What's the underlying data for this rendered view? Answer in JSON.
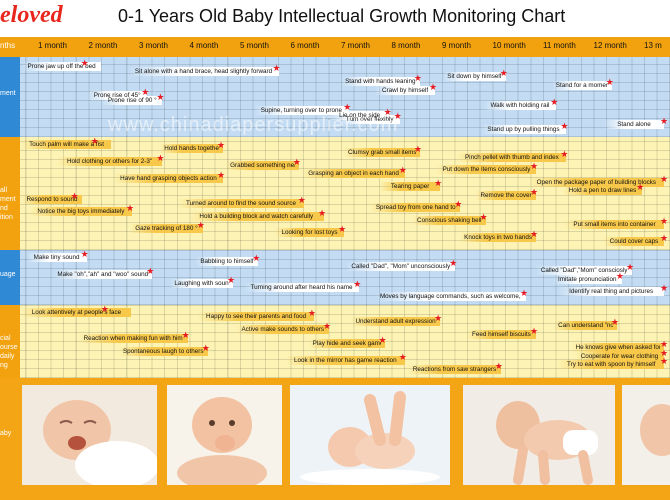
{
  "brand": "eloved",
  "title": "0-1 Years Old Baby Intellectual Growth Monitoring Chart",
  "watermark": "www.chinadiapersupplier.com",
  "header": {
    "corner": "nths"
  },
  "baby_label": "aby",
  "chart_data": {
    "type": "table",
    "title": "0-1 Years Old Baby Intellectual Growth Monitoring Chart",
    "months": [
      "1 month",
      "2 month",
      "3 month",
      "4 month",
      "5 month",
      "6 month",
      "7 month",
      "8 month",
      "9 month",
      "10 month",
      "11 month",
      "12 month",
      "13 m"
    ],
    "sections": [
      {
        "label": "ment",
        "items": [
          {
            "text": "Prone jaw up off the bed",
            "month": 1.7
          },
          {
            "text": "Sit alone with a hand brace, head slightly forward",
            "month": 5.5
          },
          {
            "text": "Sit down by himself",
            "month": 10.0
          },
          {
            "text": "Stand with hands leaning",
            "month": 8.3
          },
          {
            "text": "Stand for a moment",
            "month": 12.1
          },
          {
            "text": "Crawl by himself",
            "month": 8.6
          },
          {
            "text": "Prone rise of 45°",
            "month": 2.9
          },
          {
            "text": "Prone rise of 90 °",
            "month": 3.2
          },
          {
            "text": "Walk with holding rail",
            "month": 11.0
          },
          {
            "text": "Supine, turning over to prone",
            "month": 6.9
          },
          {
            "text": "Lie on the side",
            "month": 7.7
          },
          {
            "text": "Turn over flexibly",
            "month": 7.9
          },
          {
            "text": "Stand alone",
            "month": 13.3
          },
          {
            "text": "Stand up by pulling things",
            "month": 11.2
          }
        ]
      },
      {
        "label": "all ment nd ition",
        "items": [
          {
            "text": "Touch palm will make a fist",
            "month": 1.9
          },
          {
            "text": "Hold hands together",
            "month": 4.4
          },
          {
            "text": "Clumsy grab small items",
            "month": 8.3
          },
          {
            "text": "Pinch pellet with thumb and index",
            "month": 11.2
          },
          {
            "text": "Hold clothing or others for 2-3\"",
            "month": 3.2
          },
          {
            "text": "Grabbed something near",
            "month": 5.9
          },
          {
            "text": "Put down the items consciously",
            "month": 10.6
          },
          {
            "text": "Grasping an object in each hand",
            "month": 8.0
          },
          {
            "text": "Have hand grasping objects action",
            "month": 4.4
          },
          {
            "text": "Open the package paper of building blocks",
            "month": 13.2
          },
          {
            "text": "Tearing paper",
            "month": 8.7
          },
          {
            "text": "Hold a pen to draw lines",
            "month": 12.7
          },
          {
            "text": "Remove the cover",
            "month": 10.6
          },
          {
            "text": "Respond to sound",
            "month": 1.5
          },
          {
            "text": "Turned around to find the sound source",
            "month": 6.0
          },
          {
            "text": "Spread toy from one hand to",
            "month": 9.1
          },
          {
            "text": "Notice the big toys immediately",
            "month": 2.6
          },
          {
            "text": "Hold a building block and watch carefully",
            "month": 6.4
          },
          {
            "text": "Conscious shaking bell",
            "month": 9.6
          },
          {
            "text": "Put small items into container",
            "month": 13.3
          },
          {
            "text": "Gaze tracking of 180 °",
            "month": 4.0
          },
          {
            "text": "Looking for lost toys",
            "month": 6.8
          },
          {
            "text": "Knock toys in two hands",
            "month": 10.6
          },
          {
            "text": "Could cover caps",
            "month": 13.3
          }
        ]
      },
      {
        "label": "uage",
        "items": [
          {
            "text": "Make tiny sound",
            "month": 1.7
          },
          {
            "text": "Babbling to himself",
            "month": 5.1
          },
          {
            "text": "Called \"Dad\", \"Mom\" unconsciously",
            "month": 9.0
          },
          {
            "text": "Called \"Dad\",\"Mom\" consciosly",
            "month": 12.5
          },
          {
            "text": "Make \"oh\",\"ah\" and \"woo\" sound",
            "month": 3.0
          },
          {
            "text": "Imitate pronunciation",
            "month": 12.3
          },
          {
            "text": "Laughing with sound",
            "month": 4.6
          },
          {
            "text": "Turning around after heard his name",
            "month": 7.1
          },
          {
            "text": "Identify real thing and pictures",
            "month": 13.3
          },
          {
            "text": "Moves by language commands, such as welcome, goodbye",
            "month": 10.4
          }
        ]
      },
      {
        "label": "cial ourse daily ng",
        "items": [
          {
            "text": "Look attentively at people's face",
            "month": 2.1
          },
          {
            "text": "Happy to see their parents and food",
            "month": 6.2
          },
          {
            "text": "Understand adult expression",
            "month": 8.7
          },
          {
            "text": "Can understand \"no\"",
            "month": 12.2
          },
          {
            "text": "Active make sounds to others",
            "month": 6.5
          },
          {
            "text": "Feed himself biscuits",
            "month": 10.6
          },
          {
            "text": "Reaction when making fun with him",
            "month": 3.7
          },
          {
            "text": "Play hide and seek game",
            "month": 7.6
          },
          {
            "text": "He knows give when asked for",
            "month": 13.3
          },
          {
            "text": "Spontaneous laugh to others",
            "month": 4.1
          },
          {
            "text": "Cooperate for wear clothing",
            "month": 13.3
          },
          {
            "text": "Look in the mirror has game reaction",
            "month": 8.0
          },
          {
            "text": "Try to eat with spoon by himself",
            "month": 13.3
          },
          {
            "text": "Reactions from saw strangers",
            "month": 9.9
          }
        ]
      }
    ]
  }
}
